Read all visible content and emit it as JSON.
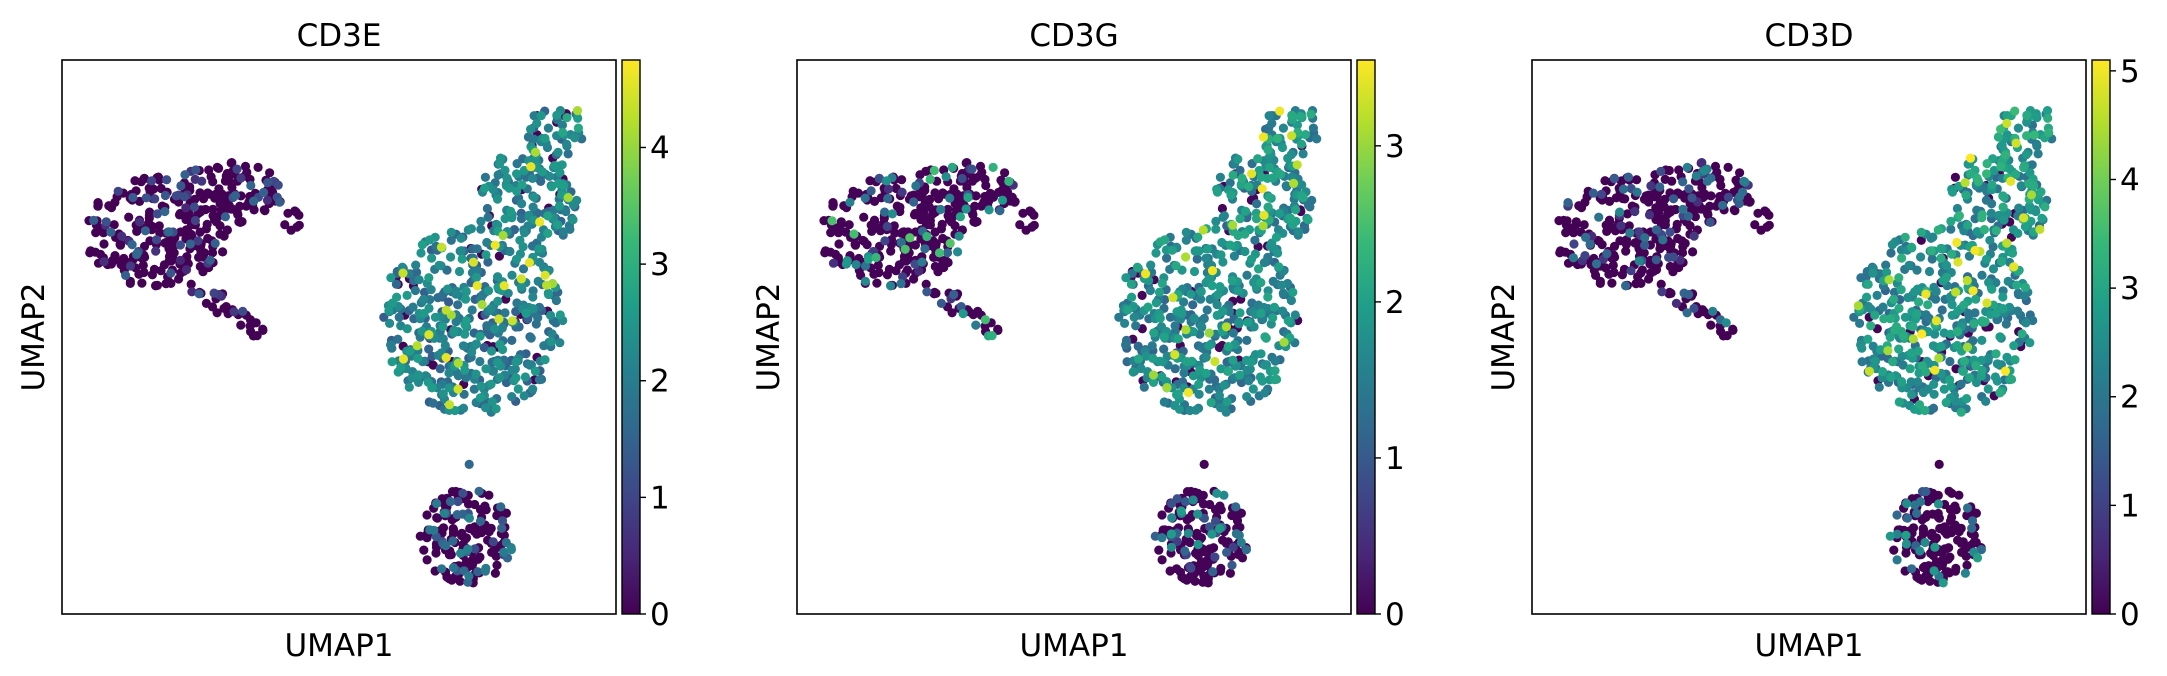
{
  "chart_data": [
    {
      "type": "scatter",
      "title": "CD3E",
      "xlabel": "UMAP1",
      "ylabel": "UMAP2",
      "x_ticks": "none",
      "y_ticks": "none",
      "colormap": "viridis",
      "colorbar": {
        "min": 0,
        "max": 4.75,
        "ticks": [
          0,
          1,
          2,
          3,
          4
        ]
      },
      "clusters": [
        {
          "label": "upper-left cluster",
          "expression_mean": 0.25,
          "expression_max": 1.6
        },
        {
          "label": "large right cluster",
          "expression_mean": 2.5,
          "expression_max": 4.7
        },
        {
          "label": "bottom cluster",
          "expression_mean": 0.5,
          "expression_max": 2.2
        }
      ]
    },
    {
      "type": "scatter",
      "title": "CD3G",
      "xlabel": "UMAP1",
      "ylabel": "UMAP2",
      "x_ticks": "none",
      "y_ticks": "none",
      "colormap": "viridis",
      "colorbar": {
        "min": 0,
        "max": 3.55,
        "ticks": [
          0,
          1,
          2,
          3
        ]
      },
      "clusters": [
        {
          "label": "upper-left cluster",
          "expression_mean": 0.2,
          "expression_max": 2.6
        },
        {
          "label": "large right cluster",
          "expression_mean": 2.0,
          "expression_max": 3.5
        },
        {
          "label": "bottom cluster",
          "expression_mean": 0.3,
          "expression_max": 2.0
        }
      ]
    },
    {
      "type": "scatter",
      "title": "CD3D",
      "xlabel": "UMAP1",
      "ylabel": "UMAP2",
      "x_ticks": "none",
      "y_ticks": "none",
      "colormap": "viridis",
      "colorbar": {
        "min": 0,
        "max": 5.1,
        "ticks": [
          0,
          1,
          2,
          3,
          4,
          5
        ]
      },
      "clusters": [
        {
          "label": "upper-left cluster",
          "expression_mean": 0.3,
          "expression_max": 2.5
        },
        {
          "label": "large right cluster",
          "expression_mean": 3.0,
          "expression_max": 5.1
        },
        {
          "label": "bottom cluster",
          "expression_mean": 0.6,
          "expression_max": 3.0
        }
      ]
    }
  ]
}
